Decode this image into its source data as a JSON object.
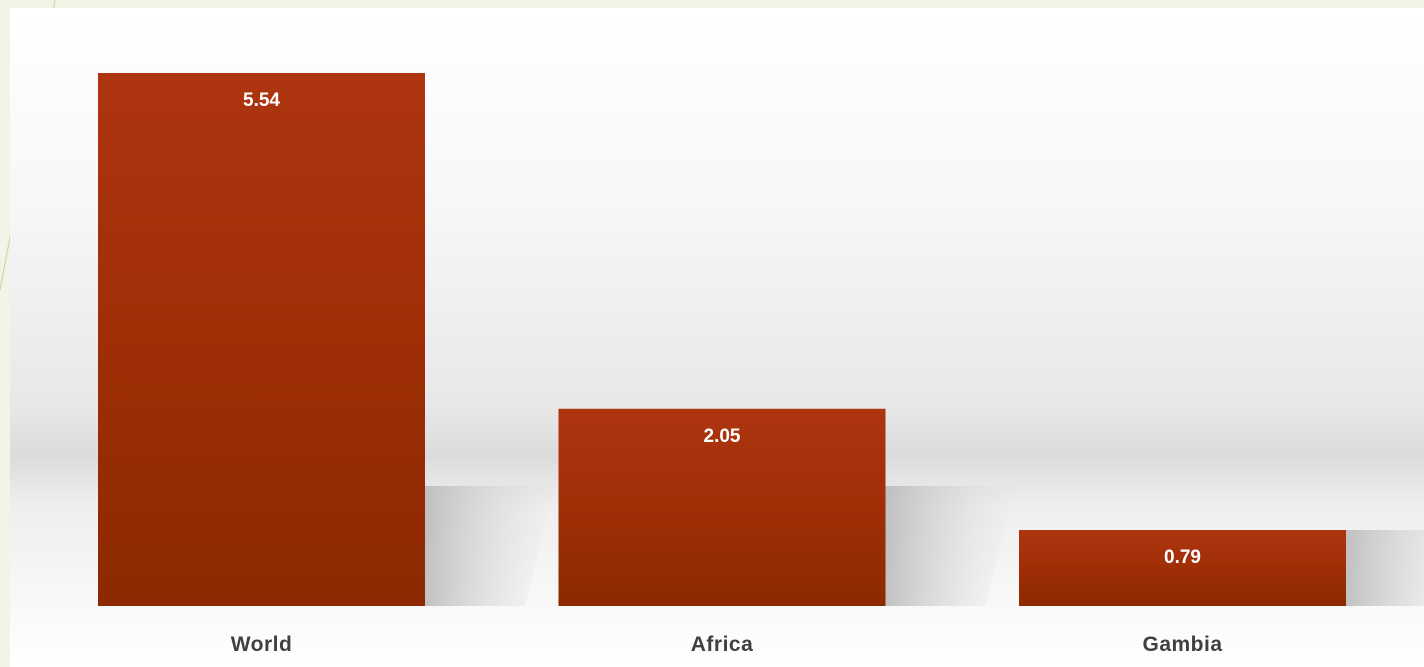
{
  "chart_data": {
    "type": "bar",
    "categories": [
      "World",
      "Africa",
      "Gambia"
    ],
    "values": [
      5.54,
      2.05,
      0.79
    ],
    "title": "",
    "xlabel": "",
    "ylabel": "",
    "ylim": [
      0,
      5.54
    ],
    "grid": false,
    "legend": "none",
    "data_labels": true,
    "bar_color": "#a0300a",
    "bar_color_light": "#ad3510",
    "bar_color_dark": "#8e2a00"
  }
}
